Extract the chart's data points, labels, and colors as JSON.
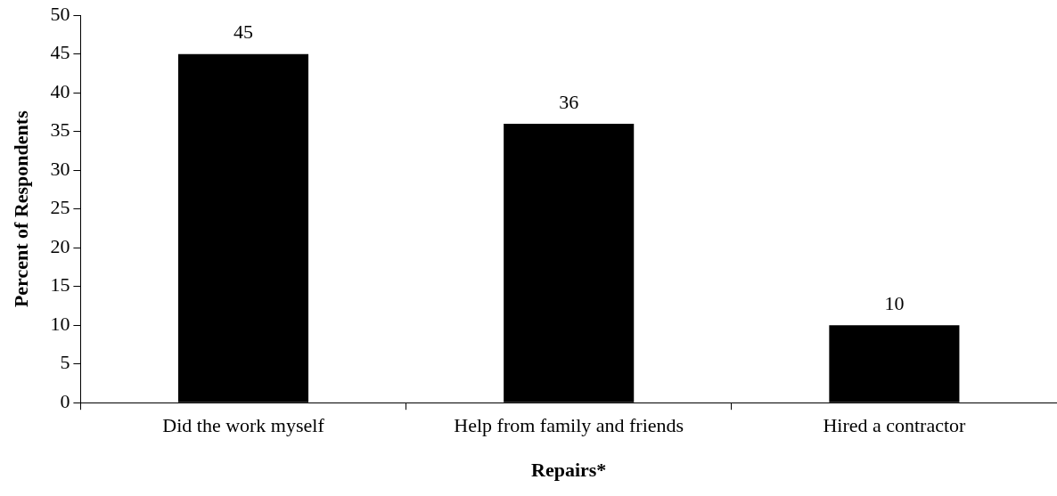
{
  "chart_data": {
    "type": "bar",
    "xlabel": "Repairs*",
    "ylabel": "Percent of Respondents",
    "categories": [
      "Did the work myself",
      "Help from family and friends",
      "Hired a contractor"
    ],
    "values": [
      45,
      36,
      10
    ],
    "color": "#000000",
    "ylim": [
      0,
      50
    ],
    "yticks": [
      0,
      5,
      10,
      15,
      20,
      25,
      30,
      35,
      40,
      45,
      50
    ],
    "grid": false,
    "legend": false,
    "data_labels": true
  }
}
